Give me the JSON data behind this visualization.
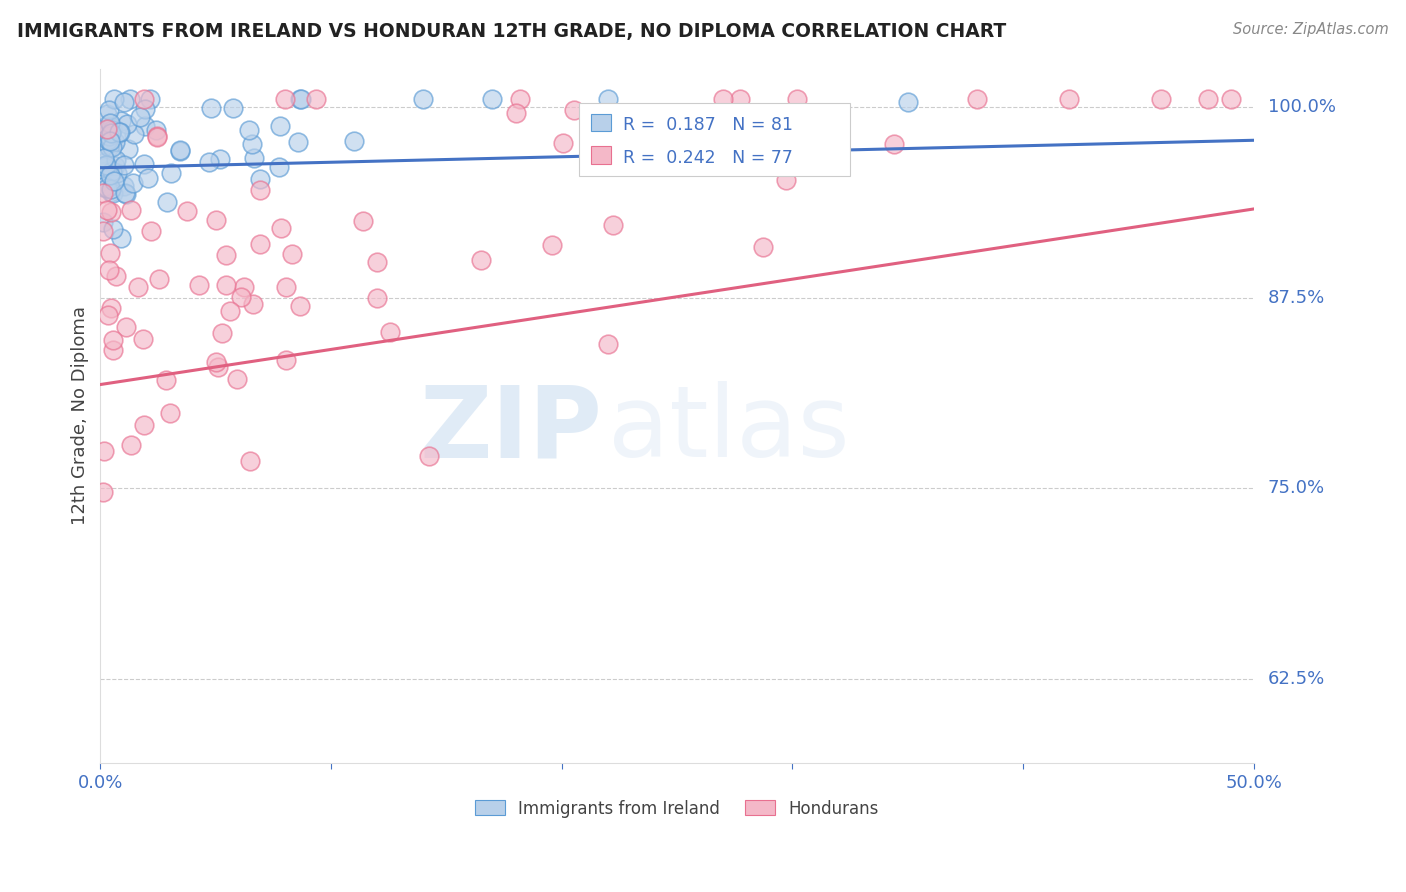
{
  "title": "IMMIGRANTS FROM IRELAND VS HONDURAN 12TH GRADE, NO DIPLOMA CORRELATION CHART",
  "source": "Source: ZipAtlas.com",
  "ylabel": "12th Grade, No Diploma",
  "ytick_labels": [
    "100.0%",
    "87.5%",
    "75.0%",
    "62.5%"
  ],
  "ytick_values": [
    1.0,
    0.875,
    0.75,
    0.625
  ],
  "blue_fill_color": "#b8d0ea",
  "blue_edge_color": "#5b9bd5",
  "pink_fill_color": "#f4b8c8",
  "pink_edge_color": "#e87090",
  "blue_line_color": "#4472c4",
  "pink_line_color": "#e06080",
  "axis_label_color": "#4472c4",
  "title_color": "#222222",
  "grid_color": "#cccccc",
  "background_color": "#ffffff",
  "xmin": 0.0,
  "xmax": 0.5,
  "ymin": 0.57,
  "ymax": 1.025,
  "blue_trend_x": [
    0.0,
    0.5
  ],
  "blue_trend_y": [
    0.96,
    0.978
  ],
  "pink_trend_x": [
    0.0,
    0.5
  ],
  "pink_trend_y": [
    0.818,
    0.933
  ]
}
